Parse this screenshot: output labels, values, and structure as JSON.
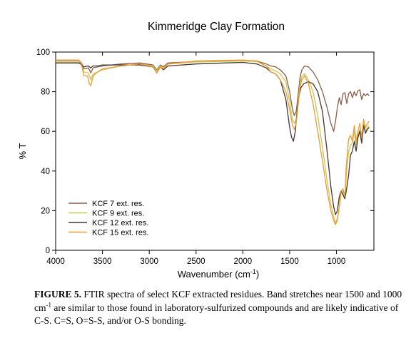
{
  "chart_data": {
    "type": "line",
    "title": "Kimmeridge Clay Formation",
    "xlabel": "Wavenumber (cm",
    "xlabel_sup": "-1",
    "xlabel_tail": ")",
    "ylabel": "% T",
    "xlim": [
      4000,
      600
    ],
    "x_reversed": true,
    "ylim": [
      0,
      100
    ],
    "x_ticks": [
      4000,
      3500,
      3000,
      2500,
      2000,
      1500,
      1000
    ],
    "y_ticks": [
      0,
      20,
      40,
      60,
      80,
      100
    ],
    "grid": false,
    "legend_position": "bottom-left",
    "series": [
      {
        "name": "KCF 7 ext. res.",
        "color": "#8B5E4A",
        "points": [
          [
            4000,
            95.8
          ],
          [
            3750,
            95.8
          ],
          [
            3720,
            94
          ],
          [
            3700,
            91.5
          ],
          [
            3650,
            92
          ],
          [
            3625,
            89.5
          ],
          [
            3600,
            92
          ],
          [
            3550,
            92.5
          ],
          [
            3500,
            93
          ],
          [
            3300,
            94
          ],
          [
            3100,
            94.5
          ],
          [
            2960,
            93.5
          ],
          [
            2920,
            91
          ],
          [
            2880,
            93.5
          ],
          [
            2850,
            92.5
          ],
          [
            2800,
            94.5
          ],
          [
            2500,
            95.2
          ],
          [
            2200,
            95.5
          ],
          [
            2000,
            95.7
          ],
          [
            1850,
            95.5
          ],
          [
            1750,
            94
          ],
          [
            1700,
            93
          ],
          [
            1650,
            92.5
          ],
          [
            1600,
            91
          ],
          [
            1540,
            88
          ],
          [
            1500,
            80
          ],
          [
            1470,
            71
          ],
          [
            1450,
            68
          ],
          [
            1430,
            70
          ],
          [
            1410,
            78
          ],
          [
            1390,
            87
          ],
          [
            1370,
            91
          ],
          [
            1340,
            93
          ],
          [
            1300,
            92.5
          ],
          [
            1250,
            90
          ],
          [
            1200,
            86
          ],
          [
            1150,
            80
          ],
          [
            1100,
            72
          ],
          [
            1060,
            64
          ],
          [
            1030,
            60
          ],
          [
            1010,
            65
          ],
          [
            990,
            72
          ],
          [
            970,
            77
          ],
          [
            950,
            73.5
          ],
          [
            930,
            79
          ],
          [
            910,
            79.5
          ],
          [
            890,
            74
          ],
          [
            870,
            79
          ],
          [
            850,
            80
          ],
          [
            830,
            77
          ],
          [
            810,
            80
          ],
          [
            790,
            78
          ],
          [
            770,
            80.5
          ],
          [
            750,
            81
          ],
          [
            730,
            76
          ],
          [
            710,
            79
          ],
          [
            690,
            78
          ],
          [
            670,
            79
          ],
          [
            650,
            78
          ]
        ]
      },
      {
        "name": "KCF 9 ext. res.",
        "color": "#C8C85A",
        "points": [
          [
            4000,
            95
          ],
          [
            3750,
            95
          ],
          [
            3720,
            93
          ],
          [
            3700,
            90
          ],
          [
            3650,
            89.5
          ],
          [
            3625,
            86
          ],
          [
            3600,
            89
          ],
          [
            3550,
            90
          ],
          [
            3500,
            91
          ],
          [
            3300,
            93
          ],
          [
            3100,
            94
          ],
          [
            2960,
            93
          ],
          [
            2920,
            90.5
          ],
          [
            2880,
            93
          ],
          [
            2850,
            92
          ],
          [
            2800,
            94
          ],
          [
            2500,
            95
          ],
          [
            2200,
            95.3
          ],
          [
            2000,
            95.5
          ],
          [
            1850,
            95.2
          ],
          [
            1750,
            93
          ],
          [
            1700,
            91.5
          ],
          [
            1650,
            90.5
          ],
          [
            1600,
            89
          ],
          [
            1540,
            85
          ],
          [
            1500,
            75
          ],
          [
            1470,
            66
          ],
          [
            1450,
            64
          ],
          [
            1430,
            66
          ],
          [
            1410,
            75
          ],
          [
            1390,
            84
          ],
          [
            1370,
            88
          ],
          [
            1340,
            89
          ],
          [
            1300,
            86
          ],
          [
            1250,
            80
          ],
          [
            1200,
            68
          ],
          [
            1150,
            52
          ],
          [
            1100,
            35
          ],
          [
            1060,
            23
          ],
          [
            1030,
            17
          ],
          [
            1010,
            14
          ],
          [
            990,
            16
          ],
          [
            970,
            22
          ],
          [
            950,
            29
          ],
          [
            930,
            30
          ],
          [
            910,
            26
          ],
          [
            895,
            38
          ],
          [
            870,
            50
          ],
          [
            850,
            53
          ],
          [
            830,
            54
          ],
          [
            810,
            60
          ],
          [
            790,
            53
          ],
          [
            770,
            58
          ],
          [
            750,
            61
          ],
          [
            730,
            55
          ],
          [
            710,
            64
          ],
          [
            690,
            60
          ],
          [
            670,
            62
          ],
          [
            650,
            63
          ]
        ]
      },
      {
        "name": "KCF 12 ext. res.",
        "color": "#4A3530",
        "points": [
          [
            4000,
            94.5
          ],
          [
            3750,
            94.5
          ],
          [
            3720,
            93.5
          ],
          [
            3700,
            92.5
          ],
          [
            3650,
            93
          ],
          [
            3625,
            92
          ],
          [
            3600,
            93
          ],
          [
            3550,
            93
          ],
          [
            3500,
            93.5
          ],
          [
            3300,
            93.5
          ],
          [
            3100,
            93.5
          ],
          [
            2960,
            92.5
          ],
          [
            2920,
            89.5
          ],
          [
            2880,
            92.5
          ],
          [
            2850,
            91
          ],
          [
            2800,
            93
          ],
          [
            2500,
            94
          ],
          [
            2200,
            94.5
          ],
          [
            2000,
            94.8
          ],
          [
            1850,
            94
          ],
          [
            1750,
            92
          ],
          [
            1700,
            90
          ],
          [
            1650,
            89
          ],
          [
            1600,
            86
          ],
          [
            1540,
            76
          ],
          [
            1500,
            62
          ],
          [
            1480,
            57
          ],
          [
            1460,
            55
          ],
          [
            1440,
            60
          ],
          [
            1420,
            70
          ],
          [
            1400,
            78
          ],
          [
            1380,
            82
          ],
          [
            1350,
            84
          ],
          [
            1300,
            85
          ],
          [
            1250,
            84
          ],
          [
            1200,
            80
          ],
          [
            1150,
            70
          ],
          [
            1100,
            50
          ],
          [
            1060,
            32
          ],
          [
            1030,
            22
          ],
          [
            1010,
            18
          ],
          [
            990,
            20
          ],
          [
            970,
            27
          ],
          [
            950,
            30
          ],
          [
            930,
            28
          ],
          [
            910,
            26
          ],
          [
            895,
            30
          ],
          [
            870,
            38
          ],
          [
            850,
            48
          ],
          [
            830,
            50
          ],
          [
            810,
            55
          ],
          [
            790,
            50
          ],
          [
            770,
            57
          ],
          [
            750,
            60
          ],
          [
            730,
            54
          ],
          [
            710,
            63
          ],
          [
            690,
            59
          ],
          [
            670,
            61
          ],
          [
            650,
            62
          ]
        ]
      },
      {
        "name": "KCF 15 ext. res.",
        "color": "#F09A2E",
        "points": [
          [
            4000,
            96
          ],
          [
            3750,
            96
          ],
          [
            3720,
            93
          ],
          [
            3700,
            88
          ],
          [
            3660,
            88
          ],
          [
            3640,
            84
          ],
          [
            3625,
            83
          ],
          [
            3600,
            88
          ],
          [
            3550,
            90
          ],
          [
            3500,
            91.5
          ],
          [
            3300,
            93
          ],
          [
            3100,
            94
          ],
          [
            2960,
            92.5
          ],
          [
            2920,
            89.5
          ],
          [
            2880,
            92.5
          ],
          [
            2850,
            91.5
          ],
          [
            2800,
            94
          ],
          [
            2500,
            95.5
          ],
          [
            2200,
            95.8
          ],
          [
            2000,
            96
          ],
          [
            1850,
            95.5
          ],
          [
            1750,
            93
          ],
          [
            1700,
            90
          ],
          [
            1650,
            89
          ],
          [
            1600,
            86
          ],
          [
            1540,
            80
          ],
          [
            1500,
            71
          ],
          [
            1470,
            63
          ],
          [
            1450,
            61
          ],
          [
            1430,
            64
          ],
          [
            1410,
            73
          ],
          [
            1390,
            82
          ],
          [
            1370,
            86
          ],
          [
            1340,
            88
          ],
          [
            1300,
            84
          ],
          [
            1250,
            74
          ],
          [
            1200,
            60
          ],
          [
            1150,
            45
          ],
          [
            1100,
            30
          ],
          [
            1060,
            20
          ],
          [
            1030,
            15
          ],
          [
            1010,
            13
          ],
          [
            990,
            15
          ],
          [
            970,
            22
          ],
          [
            950,
            30
          ],
          [
            930,
            31
          ],
          [
            910,
            27
          ],
          [
            895,
            43
          ],
          [
            870,
            56
          ],
          [
            850,
            58
          ],
          [
            830,
            55
          ],
          [
            810,
            63
          ],
          [
            790,
            55
          ],
          [
            770,
            60
          ],
          [
            750,
            64
          ],
          [
            730,
            57
          ],
          [
            710,
            66
          ],
          [
            690,
            62
          ],
          [
            670,
            64
          ],
          [
            650,
            65
          ]
        ]
      }
    ]
  },
  "caption": {
    "label": "FIGURE  5.",
    "text_1": " FTIR spectra of select KCF extracted residues. Band stretches near 1500 and 1000 cm",
    "sup": "-1",
    "text_2": " are similar to those found in laboratory-sulfurized compounds and are likely indicative of C-S. C=S, O=S-S, and/or O-S bonding."
  }
}
